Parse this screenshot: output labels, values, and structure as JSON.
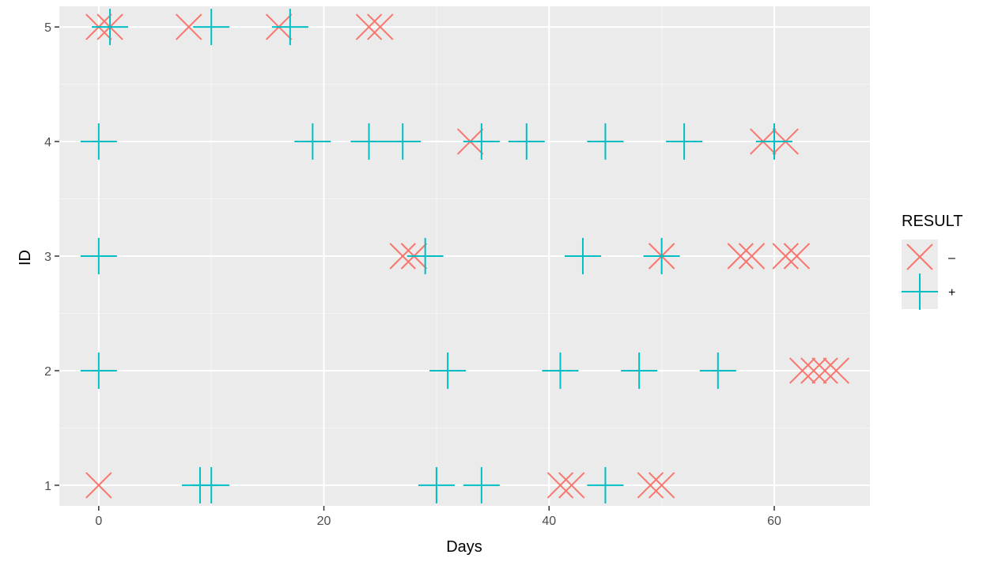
{
  "chart_data": {
    "type": "scatter",
    "xlabel": "Days",
    "ylabel": "ID",
    "xlim": [
      -3.5,
      68.5
    ],
    "ylim": [
      0.82,
      5.18
    ],
    "x_ticks": [
      0,
      20,
      40,
      60
    ],
    "y_ticks": [
      1,
      2,
      3,
      4,
      5
    ],
    "grid": true,
    "legend": {
      "title": "RESULT",
      "placement": "right"
    },
    "series": [
      {
        "name": "–",
        "marker": "x-cross",
        "color": "#F8766D",
        "points": [
          {
            "x": 0,
            "y": 5
          },
          {
            "x": 1,
            "y": 5
          },
          {
            "x": 8,
            "y": 5
          },
          {
            "x": 16,
            "y": 5
          },
          {
            "x": 24,
            "y": 5
          },
          {
            "x": 25,
            "y": 5
          },
          {
            "x": 33,
            "y": 4
          },
          {
            "x": 59,
            "y": 4
          },
          {
            "x": 61,
            "y": 4
          },
          {
            "x": 27,
            "y": 3
          },
          {
            "x": 28,
            "y": 3
          },
          {
            "x": 50,
            "y": 3
          },
          {
            "x": 57,
            "y": 3
          },
          {
            "x": 58,
            "y": 3
          },
          {
            "x": 61,
            "y": 3
          },
          {
            "x": 62,
            "y": 3
          },
          {
            "x": 62.5,
            "y": 2
          },
          {
            "x": 63.5,
            "y": 2
          },
          {
            "x": 64.5,
            "y": 2
          },
          {
            "x": 65.5,
            "y": 2
          },
          {
            "x": 0,
            "y": 1
          },
          {
            "x": 41,
            "y": 1
          },
          {
            "x": 42,
            "y": 1
          },
          {
            "x": 49,
            "y": 1
          },
          {
            "x": 50,
            "y": 1
          }
        ]
      },
      {
        "name": "+",
        "marker": "plus",
        "color": "#00BFC4",
        "points": [
          {
            "x": 1,
            "y": 5
          },
          {
            "x": 10,
            "y": 5
          },
          {
            "x": 17,
            "y": 5
          },
          {
            "x": 0,
            "y": 4
          },
          {
            "x": 19,
            "y": 4
          },
          {
            "x": 24,
            "y": 4
          },
          {
            "x": 27,
            "y": 4
          },
          {
            "x": 34,
            "y": 4
          },
          {
            "x": 38,
            "y": 4
          },
          {
            "x": 45,
            "y": 4
          },
          {
            "x": 52,
            "y": 4
          },
          {
            "x": 60,
            "y": 4
          },
          {
            "x": 0,
            "y": 3
          },
          {
            "x": 29,
            "y": 3
          },
          {
            "x": 43,
            "y": 3
          },
          {
            "x": 50,
            "y": 3
          },
          {
            "x": 0,
            "y": 2
          },
          {
            "x": 31,
            "y": 2
          },
          {
            "x": 41,
            "y": 2
          },
          {
            "x": 48,
            "y": 2
          },
          {
            "x": 55,
            "y": 2
          },
          {
            "x": 9,
            "y": 1
          },
          {
            "x": 10,
            "y": 1
          },
          {
            "x": 30,
            "y": 1
          },
          {
            "x": 34,
            "y": 1
          },
          {
            "x": 45,
            "y": 1
          }
        ]
      }
    ],
    "colors": {
      "panel_bg": "#EBEBEB",
      "grid_major": "#FFFFFF",
      "grid_minor": "#F5F5F5",
      "legend_key_bg": "#EBEBEB"
    }
  }
}
